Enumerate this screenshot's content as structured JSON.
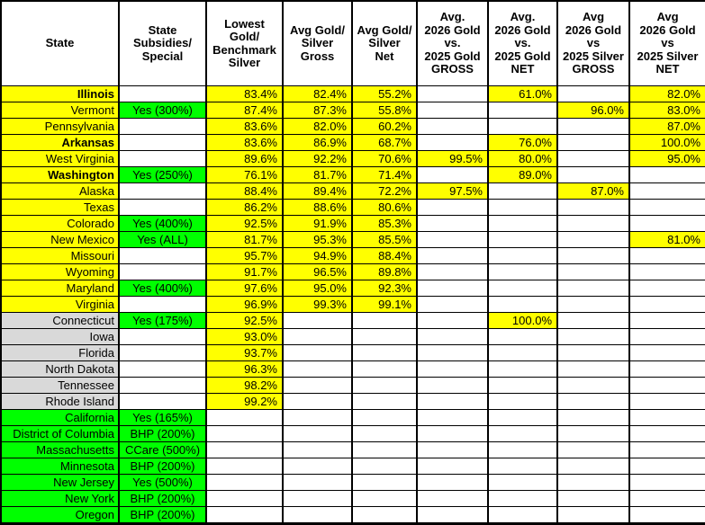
{
  "colors": {
    "yellow": "#FFFF00",
    "green": "#00FF00",
    "gray": "#D9D9D9",
    "white": "#FFFFFF",
    "border": "#000000"
  },
  "table": {
    "columns": [
      "State",
      "State\nSubsidies/\nSpecial",
      "Lowest\nGold/\nBenchmark\nSilver",
      "Avg Gold/\nSilver\nGross",
      "Avg Gold/\nSilver\nNet",
      "Avg.\n2026 Gold\nvs.\n2025 Gold\nGROSS",
      "Avg.\n2026 Gold\nvs.\n2025 Gold\nNET",
      "Avg\n2026 Gold\nvs\n2025 Silver\nGROSS",
      "Avg\n2026 Gold\nvs\n2025 Silver\nNET"
    ],
    "rows": [
      {
        "state": "Illinois",
        "bold": true,
        "type": "yellow",
        "subsidy": "",
        "values": [
          "83.4%",
          "82.4%",
          "55.2%",
          "",
          "61.0%",
          "",
          "82.0%"
        ]
      },
      {
        "state": "Vermont",
        "bold": false,
        "type": "yellow",
        "subsidy": "Yes (300%)",
        "values": [
          "87.4%",
          "87.3%",
          "55.8%",
          "",
          "",
          "96.0%",
          "83.0%"
        ]
      },
      {
        "state": "Pennsylvania",
        "bold": false,
        "type": "yellow",
        "subsidy": "",
        "values": [
          "83.6%",
          "82.0%",
          "60.2%",
          "",
          "",
          "",
          "87.0%"
        ]
      },
      {
        "state": "Arkansas",
        "bold": true,
        "type": "yellow",
        "subsidy": "",
        "values": [
          "83.6%",
          "86.9%",
          "68.7%",
          "",
          "76.0%",
          "",
          "100.0%"
        ]
      },
      {
        "state": "West Virginia",
        "bold": false,
        "type": "yellow",
        "subsidy": "",
        "values": [
          "89.6%",
          "92.2%",
          "70.6%",
          "99.5%",
          "80.0%",
          "",
          "95.0%"
        ]
      },
      {
        "state": "Washington",
        "bold": true,
        "type": "yellow",
        "subsidy": "Yes (250%)",
        "values": [
          "76.1%",
          "81.7%",
          "71.4%",
          "",
          "89.0%",
          "",
          ""
        ]
      },
      {
        "state": "Alaska",
        "bold": false,
        "type": "yellow",
        "subsidy": "",
        "values": [
          "88.4%",
          "89.4%",
          "72.2%",
          "97.5%",
          "",
          "87.0%",
          ""
        ]
      },
      {
        "state": "Texas",
        "bold": false,
        "type": "yellow",
        "subsidy": "",
        "values": [
          "86.2%",
          "88.6%",
          "80.6%",
          "",
          "",
          "",
          ""
        ]
      },
      {
        "state": "Colorado",
        "bold": false,
        "type": "yellow",
        "subsidy": "Yes (400%)",
        "values": [
          "92.5%",
          "91.9%",
          "85.3%",
          "",
          "",
          "",
          ""
        ]
      },
      {
        "state": "New Mexico",
        "bold": false,
        "type": "yellow",
        "subsidy": "Yes (ALL)",
        "values": [
          "81.7%",
          "95.3%",
          "85.5%",
          "",
          "",
          "",
          "81.0%"
        ]
      },
      {
        "state": "Missouri",
        "bold": false,
        "type": "yellow",
        "subsidy": "",
        "values": [
          "95.7%",
          "94.9%",
          "88.4%",
          "",
          "",
          "",
          ""
        ]
      },
      {
        "state": "Wyoming",
        "bold": false,
        "type": "yellow",
        "subsidy": "",
        "values": [
          "91.7%",
          "96.5%",
          "89.8%",
          "",
          "",
          "",
          ""
        ]
      },
      {
        "state": "Maryland",
        "bold": false,
        "type": "yellow",
        "subsidy": "Yes (400%)",
        "values": [
          "97.6%",
          "95.0%",
          "92.3%",
          "",
          "",
          "",
          ""
        ]
      },
      {
        "state": "Virginia",
        "bold": false,
        "type": "yellow",
        "subsidy": "",
        "values": [
          "96.9%",
          "99.3%",
          "99.1%",
          "",
          "",
          "",
          ""
        ]
      },
      {
        "state": "Connecticut",
        "bold": false,
        "type": "gray",
        "subsidy": "Yes (175%)",
        "values": [
          "92.5%",
          "",
          "",
          "",
          "100.0%",
          "",
          ""
        ]
      },
      {
        "state": "Iowa",
        "bold": false,
        "type": "gray",
        "subsidy": "",
        "values": [
          "93.0%",
          "",
          "",
          "",
          "",
          "",
          ""
        ]
      },
      {
        "state": "Florida",
        "bold": false,
        "type": "gray",
        "subsidy": "",
        "values": [
          "93.7%",
          "",
          "",
          "",
          "",
          "",
          ""
        ]
      },
      {
        "state": "North Dakota",
        "bold": false,
        "type": "gray",
        "subsidy": "",
        "values": [
          "96.3%",
          "",
          "",
          "",
          "",
          "",
          ""
        ]
      },
      {
        "state": "Tennessee",
        "bold": false,
        "type": "gray",
        "subsidy": "",
        "values": [
          "98.2%",
          "",
          "",
          "",
          "",
          "",
          ""
        ]
      },
      {
        "state": "Rhode Island",
        "bold": false,
        "type": "gray",
        "subsidy": "",
        "values": [
          "99.2%",
          "",
          "",
          "",
          "",
          "",
          ""
        ]
      },
      {
        "state": "California",
        "bold": false,
        "type": "green",
        "subsidy": "Yes (165%)",
        "values": [
          "",
          "",
          "",
          "",
          "",
          "",
          ""
        ]
      },
      {
        "state": "District of Columbia",
        "bold": false,
        "type": "green",
        "subsidy": "BHP (200%)",
        "values": [
          "",
          "",
          "",
          "",
          "",
          "",
          ""
        ]
      },
      {
        "state": "Massachusetts",
        "bold": false,
        "type": "green",
        "subsidy": "CCare (500%)",
        "values": [
          "",
          "",
          "",
          "",
          "",
          "",
          ""
        ]
      },
      {
        "state": "Minnesota",
        "bold": false,
        "type": "green",
        "subsidy": "BHP (200%)",
        "values": [
          "",
          "",
          "",
          "",
          "",
          "",
          ""
        ]
      },
      {
        "state": "New Jersey",
        "bold": false,
        "type": "green",
        "subsidy": "Yes (500%)",
        "values": [
          "",
          "",
          "",
          "",
          "",
          "",
          ""
        ]
      },
      {
        "state": "New York",
        "bold": false,
        "type": "green",
        "subsidy": "BHP (200%)",
        "values": [
          "",
          "",
          "",
          "",
          "",
          "",
          ""
        ]
      },
      {
        "state": "Oregon",
        "bold": false,
        "type": "green",
        "subsidy": "BHP (200%)",
        "values": [
          "",
          "",
          "",
          "",
          "",
          "",
          ""
        ]
      }
    ]
  }
}
